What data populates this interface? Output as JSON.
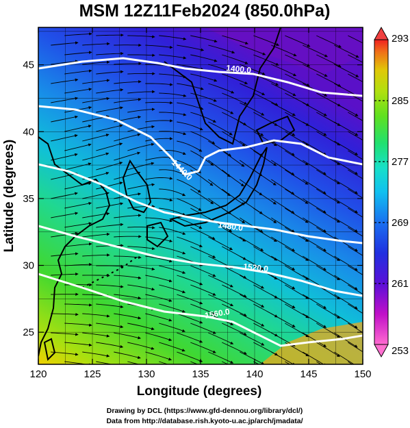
{
  "title": "MSM 12Z11Feb2024 (850.0hPa)",
  "map": {
    "xlabel": "Longitude (degrees)",
    "ylabel": "Latitude  (degrees)",
    "lon_range": [
      120,
      150
    ],
    "lat_range": [
      22.6,
      47.8
    ],
    "lon_ticks": [
      "120",
      "125",
      "130",
      "135",
      "140",
      "145",
      "150"
    ],
    "lat_ticks": [
      "25",
      "30",
      "35",
      "40",
      "45"
    ],
    "contour_labels": [
      "1400.0",
      "1440.0",
      "1480.0",
      "1520.0",
      "1560.0"
    ],
    "colorbar": {
      "min": 253,
      "max": 293,
      "ticks": [
        "253",
        "261",
        "269",
        "277",
        "285",
        "293"
      ],
      "colors": [
        "#ff6ad0",
        "#c010c8",
        "#7a10d8",
        "#3a18e0",
        "#1a50f0",
        "#10a0f0",
        "#18e0d0",
        "#20e07a",
        "#40e020",
        "#a0e010",
        "#d8d808",
        "#f0a010",
        "#f05018",
        "#f02020"
      ]
    },
    "field_colors": {
      "cold": "#5a18d0",
      "cool": "#2458e8",
      "mid": "#10b8d8",
      "warm": "#28d850",
      "hot": "#f0d000",
      "land": "#000000",
      "contour": "#ffffff",
      "streamline": "#000000"
    }
  },
  "credits": {
    "line1": "Drawing by DCL (https://www.gfd-dennou.org/library/dcl/)",
    "line2": "Data from http://database.rish.kyoto-u.ac.jp/arch/jmadata/"
  }
}
